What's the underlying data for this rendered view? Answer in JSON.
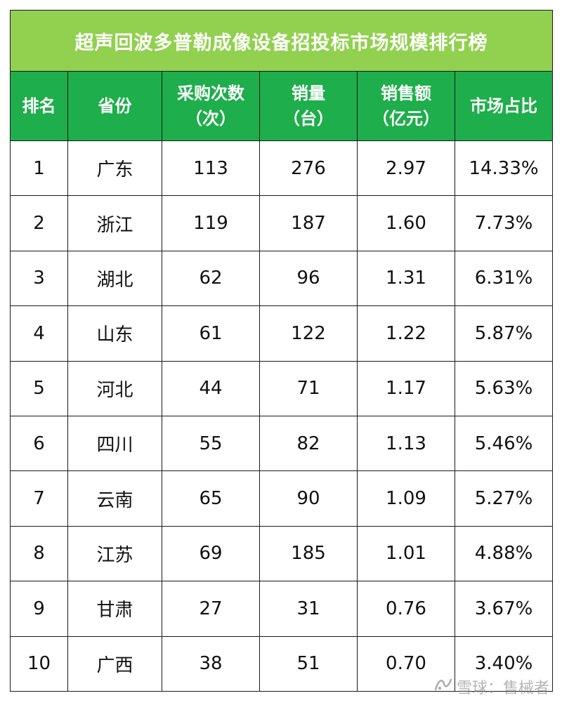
{
  "title": "超声回波多普勒成像设备招投标市场规模排行榜",
  "headers": [
    {
      "line1": "排名",
      "line2": ""
    },
    {
      "line1": "省份",
      "line2": ""
    },
    {
      "line1": "采购次数",
      "line2": "（次）"
    },
    {
      "line1": "销量",
      "line2": "（台）"
    },
    {
      "line1": "销售额",
      "line2": "（亿元）"
    },
    {
      "line1": "市场占比",
      "line2": ""
    }
  ],
  "rows": [
    {
      "rank": "1",
      "province": "广东",
      "purchases": "113",
      "units": "276",
      "sales": "2.97",
      "share": "14.33%"
    },
    {
      "rank": "2",
      "province": "浙江",
      "purchases": "119",
      "units": "187",
      "sales": "1.60",
      "share": "7.73%"
    },
    {
      "rank": "3",
      "province": "湖北",
      "purchases": "62",
      "units": "96",
      "sales": "1.31",
      "share": "6.31%"
    },
    {
      "rank": "4",
      "province": "山东",
      "purchases": "61",
      "units": "122",
      "sales": "1.22",
      "share": "5.87%"
    },
    {
      "rank": "5",
      "province": "河北",
      "purchases": "44",
      "units": "71",
      "sales": "1.17",
      "share": "5.63%"
    },
    {
      "rank": "6",
      "province": "四川",
      "purchases": "55",
      "units": "82",
      "sales": "1.13",
      "share": "5.46%"
    },
    {
      "rank": "7",
      "province": "云南",
      "purchases": "65",
      "units": "90",
      "sales": "1.09",
      "share": "5.27%"
    },
    {
      "rank": "8",
      "province": "江苏",
      "purchases": "69",
      "units": "185",
      "sales": "1.01",
      "share": "4.88%"
    },
    {
      "rank": "9",
      "province": "甘肃",
      "purchases": "27",
      "units": "31",
      "sales": "0.76",
      "share": "3.67%"
    },
    {
      "rank": "10",
      "province": "广西",
      "purchases": "38",
      "units": "51",
      "sales": "0.70",
      "share": "3.40%"
    }
  ],
  "watermark": {
    "icon": "snowball-logo-icon",
    "text": "雪球：售械者"
  },
  "colors": {
    "title_bg": "#92d050",
    "header_bg": "#1eae4b",
    "header_text": "#ffffff"
  }
}
